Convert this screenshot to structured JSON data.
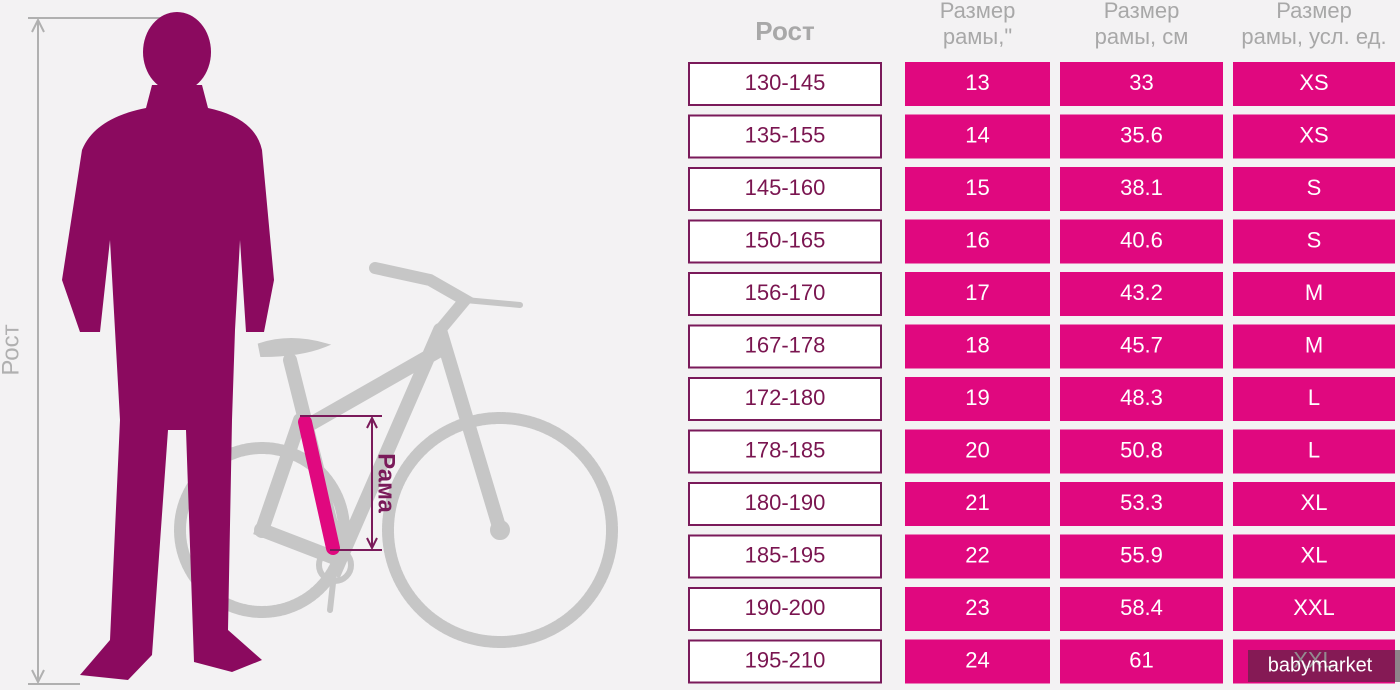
{
  "side_labels": {
    "height": "Рост",
    "frame": "Рама"
  },
  "headers": [
    {
      "lines": [
        "Рост"
      ]
    },
    {
      "lines": [
        "Размер",
        "рамы,\""
      ]
    },
    {
      "lines": [
        "Размер",
        "рамы, см"
      ]
    },
    {
      "lines": [
        "Размер",
        "рамы, усл. ед."
      ]
    }
  ],
  "table": {
    "rows": [
      [
        "130-145",
        "13",
        "33",
        "XS"
      ],
      [
        "135-155",
        "14",
        "35.6",
        "XS"
      ],
      [
        "145-160",
        "15",
        "38.1",
        "S"
      ],
      [
        "150-165",
        "16",
        "40.6",
        "S"
      ],
      [
        "156-170",
        "17",
        "43.2",
        "M"
      ],
      [
        "167-178",
        "18",
        "45.7",
        "M"
      ],
      [
        "172-180",
        "19",
        "48.3",
        "L"
      ],
      [
        "178-185",
        "20",
        "50.8",
        "L"
      ],
      [
        "180-190",
        "21",
        "53.3",
        "XL"
      ],
      [
        "185-195",
        "22",
        "55.9",
        "XL"
      ],
      [
        "190-200",
        "23",
        "58.4",
        "XXL"
      ],
      [
        "195-210",
        "24",
        "61",
        "XXL"
      ]
    ]
  },
  "watermark": "babymarket"
}
